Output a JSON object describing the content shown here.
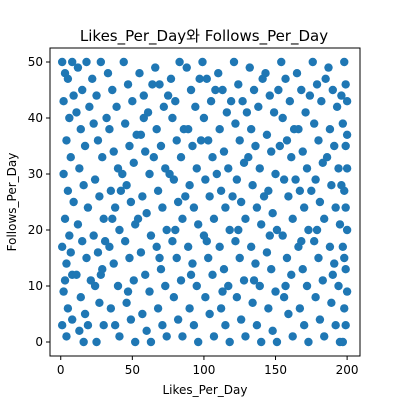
{
  "chart_data": {
    "type": "scatter",
    "title": "Likes_Per_Day와 Follows_Per_Day",
    "xlabel": "Likes_Per_Day",
    "ylabel": "Follows_Per_Day",
    "xlim": [
      -7.5,
      209
    ],
    "ylim": [
      -2.5,
      52.5
    ],
    "x_ticks": [
      0,
      50,
      100,
      150,
      200
    ],
    "y_ticks": [
      0,
      10,
      20,
      30,
      40,
      50
    ],
    "marker_color": "#1f77b4",
    "grid": false,
    "legend": "none",
    "points": [
      [
        1,
        50
      ],
      [
        3,
        48
      ],
      [
        5,
        47
      ],
      [
        8,
        50
      ],
      [
        2,
        43
      ],
      [
        6,
        40
      ],
      [
        9,
        44
      ],
      [
        4,
        36
      ],
      [
        7,
        33
      ],
      [
        2,
        30
      ],
      [
        5,
        27
      ],
      [
        9,
        25
      ],
      [
        3,
        22
      ],
      [
        6,
        19
      ],
      [
        1,
        17
      ],
      [
        4,
        14
      ],
      [
        8,
        12
      ],
      [
        2,
        9
      ],
      [
        5,
        6
      ],
      [
        1,
        3
      ],
      [
        4,
        1
      ],
      [
        8,
        4
      ],
      [
        7,
        16
      ],
      [
        3,
        11
      ],
      [
        12,
        49
      ],
      [
        15,
        45
      ],
      [
        18,
        50
      ],
      [
        11,
        41
      ],
      [
        14,
        38
      ],
      [
        17,
        35
      ],
      [
        13,
        31
      ],
      [
        16,
        28
      ],
      [
        19,
        24
      ],
      [
        12,
        21
      ],
      [
        15,
        18
      ],
      [
        18,
        15
      ],
      [
        11,
        12
      ],
      [
        14,
        8
      ],
      [
        17,
        5
      ],
      [
        13,
        2
      ],
      [
        16,
        0
      ],
      [
        19,
        3
      ],
      [
        20,
        42
      ],
      [
        21,
        11
      ],
      [
        22,
        47
      ],
      [
        25,
        44
      ],
      [
        28,
        50
      ],
      [
        23,
        39
      ],
      [
        26,
        36
      ],
      [
        29,
        33
      ],
      [
        24,
        29
      ],
      [
        27,
        26
      ],
      [
        30,
        22
      ],
      [
        23,
        19
      ],
      [
        26,
        16
      ],
      [
        29,
        13
      ],
      [
        24,
        10
      ],
      [
        27,
        7
      ],
      [
        30,
        3
      ],
      [
        25,
        0
      ],
      [
        28,
        12
      ],
      [
        31,
        18
      ],
      [
        33,
        48
      ],
      [
        36,
        45
      ],
      [
        39,
        42
      ],
      [
        34,
        38
      ],
      [
        37,
        34
      ],
      [
        40,
        31
      ],
      [
        35,
        27
      ],
      [
        38,
        24
      ],
      [
        41,
        20
      ],
      [
        34,
        17
      ],
      [
        37,
        14
      ],
      [
        40,
        10
      ],
      [
        35,
        6
      ],
      [
        38,
        3
      ],
      [
        41,
        1
      ],
      [
        32,
        40
      ],
      [
        36,
        22
      ],
      [
        42,
        27
      ],
      [
        44,
        50
      ],
      [
        47,
        46
      ],
      [
        50,
        43
      ],
      [
        45,
        39
      ],
      [
        48,
        35
      ],
      [
        51,
        32
      ],
      [
        46,
        28
      ],
      [
        49,
        25
      ],
      [
        52,
        21
      ],
      [
        45,
        18
      ],
      [
        48,
        15
      ],
      [
        51,
        11
      ],
      [
        46,
        7
      ],
      [
        49,
        4
      ],
      [
        52,
        0
      ],
      [
        43,
        30
      ],
      [
        47,
        9
      ],
      [
        53,
        37
      ],
      [
        55,
        48
      ],
      [
        58,
        44
      ],
      [
        61,
        41
      ],
      [
        56,
        37
      ],
      [
        59,
        34
      ],
      [
        62,
        30
      ],
      [
        57,
        26
      ],
      [
        60,
        23
      ],
      [
        63,
        19
      ],
      [
        56,
        16
      ],
      [
        59,
        12
      ],
      [
        62,
        9
      ],
      [
        57,
        5
      ],
      [
        60,
        2
      ],
      [
        63,
        0
      ],
      [
        54,
        22
      ],
      [
        58,
        40
      ],
      [
        64,
        46
      ],
      [
        66,
        49
      ],
      [
        69,
        46
      ],
      [
        72,
        42
      ],
      [
        67,
        38
      ],
      [
        70,
        35
      ],
      [
        73,
        31
      ],
      [
        68,
        27
      ],
      [
        71,
        24
      ],
      [
        74,
        20
      ],
      [
        67,
        17
      ],
      [
        70,
        13
      ],
      [
        73,
        10
      ],
      [
        68,
        6
      ],
      [
        71,
        3
      ],
      [
        74,
        1
      ],
      [
        65,
        33
      ],
      [
        69,
        15
      ],
      [
        75,
        44
      ],
      [
        77,
        47
      ],
      [
        80,
        43
      ],
      [
        83,
        50
      ],
      [
        78,
        40
      ],
      [
        81,
        36
      ],
      [
        84,
        33
      ],
      [
        79,
        29
      ],
      [
        82,
        25
      ],
      [
        85,
        22
      ],
      [
        78,
        18
      ],
      [
        81,
        15
      ],
      [
        84,
        11
      ],
      [
        79,
        8
      ],
      [
        82,
        4
      ],
      [
        85,
        1
      ],
      [
        76,
        30
      ],
      [
        80,
        20
      ],
      [
        86,
        38
      ],
      [
        88,
        49
      ],
      [
        91,
        45
      ],
      [
        94,
        42
      ],
      [
        89,
        38
      ],
      [
        92,
        35
      ],
      [
        95,
        31
      ],
      [
        90,
        28
      ],
      [
        93,
        24
      ],
      [
        96,
        21
      ],
      [
        89,
        17
      ],
      [
        92,
        14
      ],
      [
        95,
        10
      ],
      [
        90,
        6
      ],
      [
        93,
        3
      ],
      [
        96,
        0
      ],
      [
        87,
        26
      ],
      [
        91,
        12
      ],
      [
        97,
        47
      ],
      [
        99,
        50
      ],
      [
        102,
        47
      ],
      [
        105,
        43
      ],
      [
        100,
        40
      ],
      [
        103,
        36
      ],
      [
        106,
        33
      ],
      [
        101,
        29
      ],
      [
        104,
        26
      ],
      [
        107,
        22
      ],
      [
        100,
        19
      ],
      [
        103,
        15
      ],
      [
        106,
        12
      ],
      [
        101,
        8
      ],
      [
        104,
        5
      ],
      [
        107,
        1
      ],
      [
        98,
        36
      ],
      [
        102,
        18
      ],
      [
        108,
        45
      ],
      [
        110,
        48
      ],
      [
        113,
        45
      ],
      [
        116,
        41
      ],
      [
        111,
        38
      ],
      [
        114,
        34
      ],
      [
        117,
        31
      ],
      [
        112,
        27
      ],
      [
        115,
        24
      ],
      [
        118,
        20
      ],
      [
        111,
        17
      ],
      [
        114,
        13
      ],
      [
        117,
        10
      ],
      [
        112,
        6
      ],
      [
        115,
        3
      ],
      [
        118,
        0
      ],
      [
        109,
        30
      ],
      [
        113,
        9
      ],
      [
        119,
        43
      ],
      [
        121,
        50
      ],
      [
        124,
        46
      ],
      [
        127,
        43
      ],
      [
        122,
        39
      ],
      [
        125,
        36
      ],
      [
        128,
        32
      ],
      [
        123,
        29
      ],
      [
        126,
        25
      ],
      [
        129,
        22
      ],
      [
        122,
        18
      ],
      [
        125,
        15
      ],
      [
        128,
        11
      ],
      [
        123,
        8
      ],
      [
        126,
        4
      ],
      [
        129,
        1
      ],
      [
        120,
        26
      ],
      [
        124,
        20
      ],
      [
        130,
        41
      ],
      [
        132,
        49
      ],
      [
        135,
        45
      ],
      [
        138,
        42
      ],
      [
        133,
        38
      ],
      [
        136,
        35
      ],
      [
        139,
        31
      ],
      [
        134,
        28
      ],
      [
        137,
        24
      ],
      [
        140,
        21
      ],
      [
        133,
        17
      ],
      [
        136,
        14
      ],
      [
        139,
        10
      ],
      [
        134,
        7
      ],
      [
        137,
        3
      ],
      [
        140,
        0
      ],
      [
        131,
        33
      ],
      [
        135,
        11
      ],
      [
        141,
        47
      ],
      [
        143,
        48
      ],
      [
        146,
        44
      ],
      [
        149,
        41
      ],
      [
        144,
        37
      ],
      [
        147,
        34
      ],
      [
        150,
        30
      ],
      [
        145,
        27
      ],
      [
        148,
        23
      ],
      [
        151,
        20
      ],
      [
        144,
        16
      ],
      [
        147,
        13
      ],
      [
        150,
        9
      ],
      [
        145,
        6
      ],
      [
        148,
        2
      ],
      [
        151,
        0
      ],
      [
        142,
        26
      ],
      [
        146,
        19
      ],
      [
        152,
        45
      ],
      [
        154,
        50
      ],
      [
        157,
        47
      ],
      [
        160,
        43
      ],
      [
        155,
        40
      ],
      [
        158,
        36
      ],
      [
        161,
        33
      ],
      [
        156,
        29
      ],
      [
        159,
        26
      ],
      [
        162,
        22
      ],
      [
        155,
        19
      ],
      [
        158,
        15
      ],
      [
        161,
        12
      ],
      [
        156,
        8
      ],
      [
        159,
        5
      ],
      [
        162,
        1
      ],
      [
        153,
        35
      ],
      [
        157,
        10
      ],
      [
        163,
        38
      ],
      [
        165,
        48
      ],
      [
        168,
        45
      ],
      [
        171,
        41
      ],
      [
        166,
        38
      ],
      [
        169,
        34
      ],
      [
        172,
        31
      ],
      [
        167,
        27
      ],
      [
        170,
        24
      ],
      [
        173,
        20
      ],
      [
        166,
        17
      ],
      [
        169,
        13
      ],
      [
        172,
        10
      ],
      [
        167,
        6
      ],
      [
        170,
        3
      ],
      [
        173,
        0
      ],
      [
        164,
        29
      ],
      [
        168,
        18
      ],
      [
        174,
        44
      ],
      [
        176,
        50
      ],
      [
        179,
        46
      ],
      [
        182,
        43
      ],
      [
        177,
        39
      ],
      [
        180,
        36
      ],
      [
        183,
        32
      ],
      [
        178,
        29
      ],
      [
        181,
        25
      ],
      [
        184,
        22
      ],
      [
        177,
        18
      ],
      [
        180,
        15
      ],
      [
        183,
        11
      ],
      [
        178,
        8
      ],
      [
        181,
        4
      ],
      [
        184,
        1
      ],
      [
        175,
        27
      ],
      [
        179,
        20
      ],
      [
        185,
        47
      ],
      [
        187,
        49
      ],
      [
        190,
        45
      ],
      [
        193,
        42
      ],
      [
        188,
        38
      ],
      [
        191,
        35
      ],
      [
        194,
        31
      ],
      [
        189,
        28
      ],
      [
        192,
        24
      ],
      [
        195,
        21
      ],
      [
        188,
        17
      ],
      [
        191,
        14
      ],
      [
        194,
        10
      ],
      [
        189,
        7
      ],
      [
        192,
        3
      ],
      [
        195,
        0
      ],
      [
        186,
        33
      ],
      [
        190,
        12
      ],
      [
        196,
        44
      ],
      [
        198,
        50
      ],
      [
        199,
        46
      ],
      [
        200,
        43
      ],
      [
        197,
        39
      ],
      [
        199,
        35
      ],
      [
        200,
        31
      ],
      [
        198,
        27
      ],
      [
        199,
        24
      ],
      [
        200,
        20
      ],
      [
        197,
        17
      ],
      [
        199,
        13
      ],
      [
        200,
        9
      ],
      [
        198,
        6
      ],
      [
        199,
        3
      ],
      [
        197,
        0
      ],
      [
        196,
        28
      ],
      [
        198,
        15
      ],
      [
        200,
        37
      ]
    ]
  }
}
